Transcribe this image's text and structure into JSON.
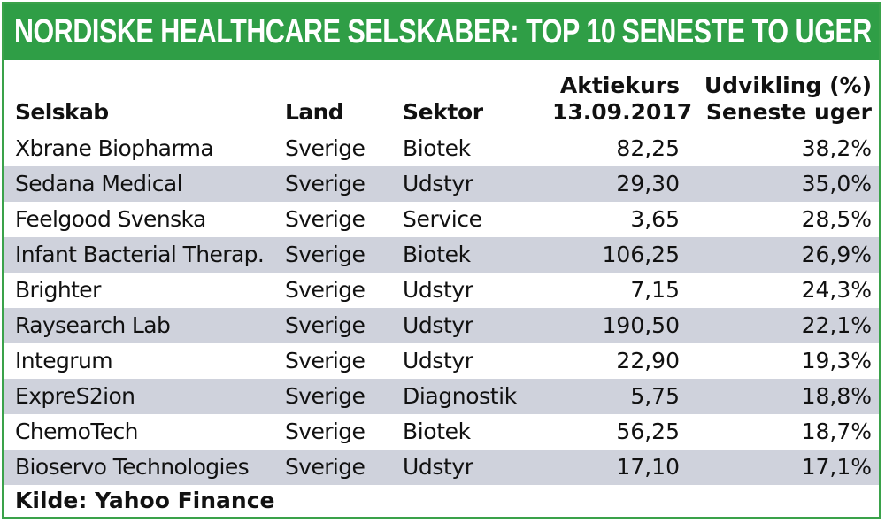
{
  "colors": {
    "banner": "#2f9e46",
    "border": "#3aa24a",
    "row_shade": "#cfd2dc",
    "text": "#111111"
  },
  "chart_data": {
    "type": "table",
    "title": "NORDISKE HEALTHCARE SELSKABER: TOP 10",
    "subtitle": "SENESTE TO UGER",
    "columns": [
      {
        "key": "company",
        "lines": [
          "Selskab"
        ]
      },
      {
        "key": "country",
        "lines": [
          "Land"
        ]
      },
      {
        "key": "sector",
        "lines": [
          "Sektor"
        ]
      },
      {
        "key": "price",
        "lines": [
          "Aktiekurs",
          "13.09.2017"
        ]
      },
      {
        "key": "change",
        "lines": [
          "Udvikling (%)",
          "Seneste uger"
        ]
      }
    ],
    "rows": [
      {
        "company": "Xbrane Biopharma",
        "country": "Sverige",
        "sector": "Biotek",
        "price": "82,25",
        "change": "38,2%"
      },
      {
        "company": "Sedana Medical",
        "country": "Sverige",
        "sector": "Udstyr",
        "price": "29,30",
        "change": "35,0%"
      },
      {
        "company": "Feelgood Svenska",
        "country": "Sverige",
        "sector": "Service",
        "price": "3,65",
        "change": "28,5%"
      },
      {
        "company": "Infant Bacterial Therap.",
        "country": "Sverige",
        "sector": "Biotek",
        "price": "106,25",
        "change": "26,9%"
      },
      {
        "company": "Brighter",
        "country": "Sverige",
        "sector": "Udstyr",
        "price": "7,15",
        "change": "24,3%"
      },
      {
        "company": "Raysearch Lab",
        "country": "Sverige",
        "sector": "Udstyr",
        "price": "190,50",
        "change": "22,1%"
      },
      {
        "company": "Integrum",
        "country": "Sverige",
        "sector": "Udstyr",
        "price": "22,90",
        "change": "19,3%"
      },
      {
        "company": "ExpreS2ion",
        "country": "Sverige",
        "sector": "Diagnostik",
        "price": "5,75",
        "change": "18,8%"
      },
      {
        "company": "ChemoTech",
        "country": "Sverige",
        "sector": "Biotek",
        "price": "56,25",
        "change": "18,7%"
      },
      {
        "company": "Bioservo Technologies",
        "country": "Sverige",
        "sector": "Udstyr",
        "price": "17,10",
        "change": "17,1%"
      }
    ],
    "source": "Kilde: Yahoo Finance"
  }
}
